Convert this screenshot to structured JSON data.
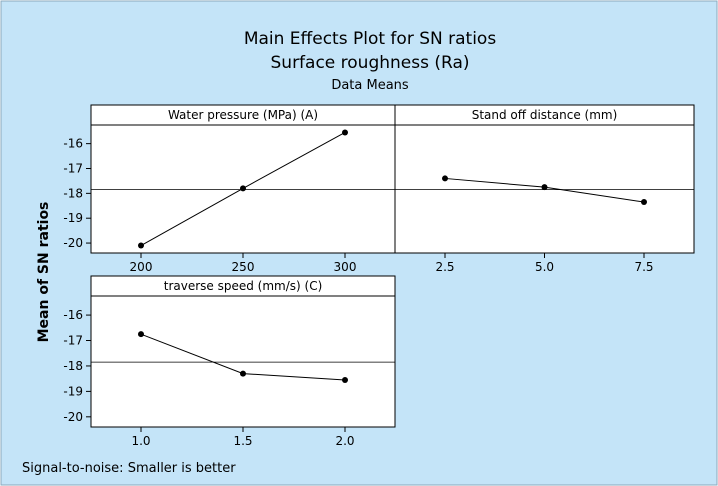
{
  "title": "Main Effects Plot for SN ratios",
  "subtitle": "Surface roughness (Ra)",
  "subtitle2": "Data Means",
  "footer": "Signal-to-noise: Smaller is better",
  "colors": {
    "background": "#c4e4f8",
    "panel": "#ffffff",
    "line": "#000000"
  },
  "chart_data": {
    "type": "line",
    "ylabel": "Mean of SN ratios",
    "ylim": [
      -20.4,
      -15.25
    ],
    "yticks": [
      -16,
      -17,
      -18,
      -19,
      -20
    ],
    "reference_line": -17.85,
    "panels": [
      {
        "title": "Water pressure (MPa) (A)",
        "x": [
          200,
          250,
          300
        ],
        "xtick_labels": [
          "200",
          "250",
          "300"
        ],
        "values": [
          -20.1,
          -17.8,
          -15.55
        ]
      },
      {
        "title": "Stand off distance (mm)",
        "x": [
          2.5,
          5.0,
          7.5
        ],
        "xtick_labels": [
          "2.5",
          "5.0",
          "7.5"
        ],
        "values": [
          -17.4,
          -17.75,
          -18.35
        ]
      },
      {
        "title": "traverse speed  (mm/s) (C)",
        "x": [
          1.0,
          1.5,
          2.0
        ],
        "xtick_labels": [
          "1.0",
          "1.5",
          "2.0"
        ],
        "values": [
          -16.75,
          -18.3,
          -18.55
        ]
      }
    ]
  }
}
